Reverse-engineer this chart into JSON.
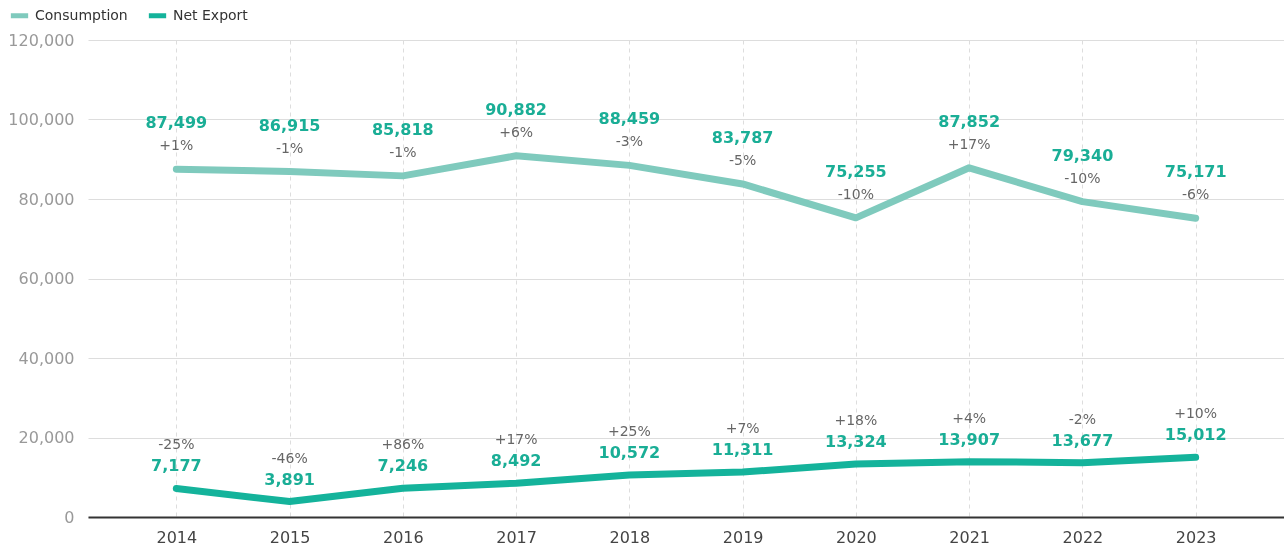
{
  "chart_data": {
    "type": "line",
    "categories": [
      "2014",
      "2015",
      "2016",
      "2017",
      "2018",
      "2019",
      "2020",
      "2021",
      "2022",
      "2023"
    ],
    "series": [
      {
        "name": "Consumption",
        "color": "#7fcabd",
        "values": [
          87499,
          86915,
          85818,
          90882,
          88459,
          83787,
          75255,
          87852,
          79340,
          75171
        ],
        "value_labels": [
          "87,499",
          "86,915",
          "85,818",
          "90,882",
          "88,459",
          "83,787",
          "75,255",
          "87,852",
          "79,340",
          "75,171"
        ]
      },
      {
        "name": "Net Export",
        "color": "#14b39b",
        "values": [
          7177,
          3891,
          7246,
          8492,
          10572,
          11311,
          13324,
          13907,
          13677,
          15012
        ],
        "value_labels": [
          "7,177",
          "3,891",
          "7,246",
          "8,492",
          "10,572",
          "11,311",
          "13,324",
          "13,907",
          "13,677",
          "15,012"
        ]
      }
    ],
    "ylim": [
      0,
      120000
    ],
    "yticks": [
      0,
      {
        "value": 20000,
        "label": "20,000"
      },
      {
        "value": 40000,
        "label": "40,000"
      },
      {
        "value": 60000,
        "label": "60,000"
      },
      {
        "value": 80000,
        "label": "80,000"
      },
      {
        "value": 100000,
        "label": "100,000"
      },
      {
        "value": 120000,
        "label": "120,000"
      }
    ],
    "grid": true,
    "legend": "top left",
    "annotations": [
      "+1%",
      "-1%",
      "-1%",
      "+6%",
      "-3%",
      "-5%",
      "-10%",
      "+17%",
      "-10%",
      "-6%",
      "-25%",
      "-46%",
      "+86%",
      "+17%",
      "+25%",
      "+7%",
      "+18%",
      "+4%",
      "-2%",
      "+10%"
    ]
  }
}
